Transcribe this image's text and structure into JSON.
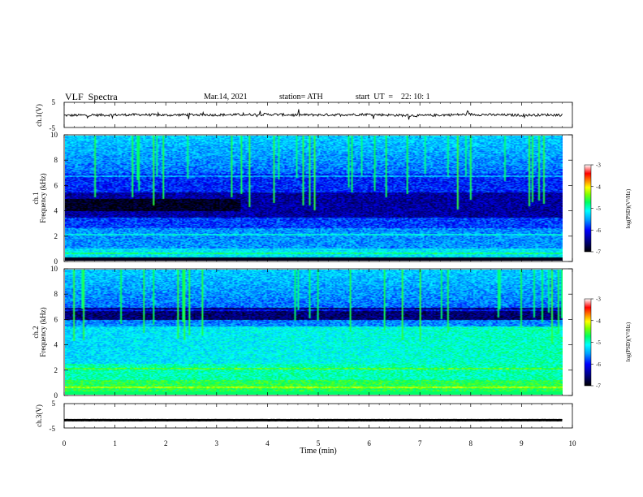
{
  "header": {
    "title": "VLF  Spectra",
    "date": "Mar.14, 2021",
    "station": "station= ATH",
    "start": "start  UT  =    22: 10: 1"
  },
  "chart_data": [
    {
      "type": "line",
      "panel": "ch1-waveform",
      "ylabel": "ch.1(V)",
      "ylim": [
        -5,
        5
      ],
      "yticks": [
        "5",
        "-5"
      ],
      "xlim": [
        0,
        10
      ],
      "x": [
        0.0,
        0.5,
        1.0,
        1.5,
        2.0,
        2.5,
        3.0,
        3.5,
        4.0,
        4.5,
        5.0,
        5.5,
        6.0,
        6.5,
        7.0,
        7.5,
        8.0,
        8.5,
        9.0,
        9.5,
        9.8
      ],
      "y": [
        -0.2,
        -0.1,
        0.0,
        0.1,
        -0.1,
        0.1,
        0.0,
        0.1,
        0.2,
        0.0,
        0.0,
        0.1,
        0.2,
        -0.1,
        -0.3,
        0.0,
        0.2,
        0.0,
        -0.1,
        0.0,
        0.0
      ]
    },
    {
      "type": "heatmap",
      "panel": "ch1-spectrogram",
      "ylabel": "ch.1\nFrequency (kHz)",
      "ylim": [
        0,
        10
      ],
      "yticks": [
        "0",
        "2",
        "4",
        "6",
        "8",
        "10"
      ],
      "xlim": [
        0,
        9.8
      ],
      "colorbar": {
        "label": "log(PSD)(V²/Hz)",
        "ticks": [
          "-3",
          "-4",
          "-5",
          "-6",
          "-7"
        ],
        "range": [
          -7,
          -3
        ]
      }
    },
    {
      "type": "heatmap",
      "panel": "ch2-spectrogram",
      "ylabel": "ch.2\nFrequency (kHz)",
      "ylim": [
        0,
        10
      ],
      "yticks": [
        "0",
        "2",
        "4",
        "6",
        "8",
        "10"
      ],
      "xlim": [
        0,
        9.8
      ],
      "colorbar": {
        "label": "log(PSD)(V²/Hz)",
        "ticks": [
          "-3",
          "-4",
          "-5",
          "-6",
          "-7"
        ],
        "range": [
          -7,
          -3
        ]
      }
    },
    {
      "type": "line",
      "panel": "ch3-waveform",
      "ylabel": "ch.3(V)",
      "ylim": [
        -5,
        5
      ],
      "yticks": [
        "5",
        "-5"
      ],
      "xlim": [
        0,
        10
      ],
      "x": [
        0.0,
        9.8
      ],
      "y": [
        -1.8,
        -1.8
      ]
    }
  ],
  "xaxis": {
    "label": "Time  (min)",
    "ticks": [
      "0",
      "1",
      "2",
      "3",
      "4",
      "5",
      "6",
      "7",
      "8",
      "9",
      "10"
    ]
  },
  "colors": {
    "colormap": [
      "#000000",
      "#000080",
      "#0000ff",
      "#00a0ff",
      "#00ffff",
      "#00ff60",
      "#80ff00",
      "#ffff00",
      "#ff8000",
      "#ff0000",
      "#ffffff"
    ]
  }
}
